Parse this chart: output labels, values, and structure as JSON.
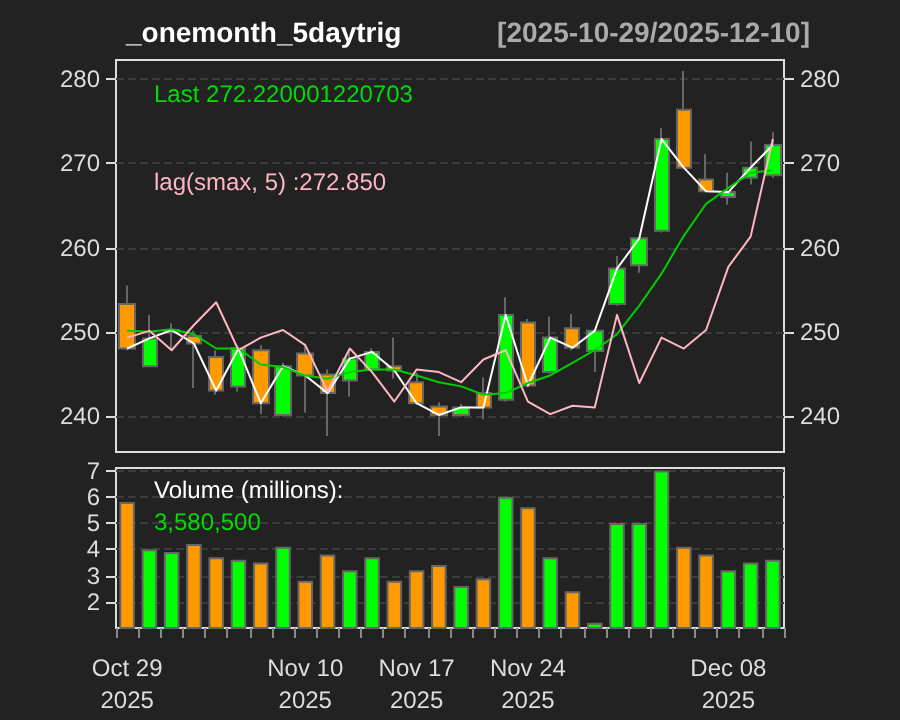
{
  "chart_data": [
    {
      "type": "candlestick",
      "title": "_onemonth_5daytrig",
      "subtitle": "[2025-10-29/2025-12-10]",
      "categories": [
        null,
        null,
        null,
        null,
        null,
        null,
        null,
        null,
        null,
        null,
        null,
        null,
        null,
        null,
        null,
        null,
        null,
        null,
        null,
        null,
        null,
        null,
        null,
        null,
        null,
        null,
        null,
        null,
        null,
        null
      ],
      "ohlc": [
        [
          253.3,
          255.5,
          247.8,
          248.0
        ],
        [
          245.9,
          252.0,
          245.8,
          249.2
        ],
        [
          249.9,
          251.0,
          247.8,
          250.2
        ],
        [
          249.5,
          250.1,
          243.3,
          248.6
        ],
        [
          247.0,
          247.8,
          242.5,
          243.0
        ],
        [
          243.5,
          248.4,
          242.9,
          248.0
        ],
        [
          247.8,
          248.4,
          240.2,
          241.5
        ],
        [
          240.1,
          246.3,
          239.9,
          245.9
        ],
        [
          247.4,
          248.5,
          240.4,
          244.8
        ],
        [
          244.9,
          245.5,
          237.6,
          242.7
        ],
        [
          244.2,
          247.8,
          242.3,
          246.8
        ],
        [
          245.5,
          248.0,
          245.2,
          247.6
        ],
        [
          245.9,
          249.3,
          244.4,
          245.4
        ],
        [
          244.0,
          245.1,
          241.3,
          241.5
        ],
        [
          241.1,
          241.6,
          237.6,
          240.1
        ],
        [
          240.1,
          241.4,
          239.9,
          241.0
        ],
        [
          242.7,
          244.6,
          239.6,
          241.0
        ],
        [
          241.9,
          254.1,
          241.7,
          252.0
        ],
        [
          251.1,
          251.5,
          243.4,
          243.6
        ],
        [
          245.2,
          251.8,
          245.0,
          249.3
        ],
        [
          250.4,
          252.1,
          247.8,
          248.1
        ],
        [
          247.7,
          250.3,
          245.2,
          250.1
        ],
        [
          253.3,
          259.0,
          253.1,
          257.5
        ],
        [
          257.9,
          261.2,
          257.0,
          261.1
        ],
        [
          262.0,
          274.2,
          261.8,
          272.9
        ],
        [
          276.4,
          281.0,
          269.4,
          269.5
        ],
        [
          268.1,
          271.1,
          266.6,
          266.7
        ],
        [
          266.0,
          268.9,
          265.1,
          266.6
        ],
        [
          268.3,
          272.6,
          267.5,
          269.5
        ],
        [
          268.6,
          273.7,
          268.3,
          272.2
        ]
      ],
      "colors": [
        "#ff9900",
        "#00ff00",
        "#00ff00",
        "#ff9900",
        "#ff9900",
        "#00ff00",
        "#ff9900",
        "#00ff00",
        "#ff9900",
        "#ff9900",
        "#00ff00",
        "#00ff00",
        "#ff9900",
        "#ff9900",
        "#ff9900",
        "#00ff00",
        "#ff9900",
        "#00ff00",
        "#ff9900",
        "#00ff00",
        "#ff9900",
        "#00ff00",
        "#00ff00",
        "#00ff00",
        "#00ff00",
        "#ff9900",
        "#ff9900",
        "#00ff00",
        "#00ff00",
        "#00ff00"
      ],
      "series": [
        {
          "type": "line",
          "color": "#ffffff",
          "values": [
            248.0,
            249.2,
            250.2,
            248.6,
            243.0,
            248.0,
            241.5,
            245.9,
            244.8,
            242.7,
            246.8,
            247.6,
            245.4,
            241.5,
            240.1,
            241.0,
            241.0,
            252.0,
            243.6,
            249.3,
            248.1,
            250.1,
            257.5,
            261.1,
            272.9,
            269.5,
            266.7,
            266.6,
            269.5,
            272.2
          ]
        },
        {
          "type": "line",
          "color": "#00cc00",
          "values": [
            250.1,
            250.0,
            250.3,
            249.7,
            248.0,
            248.0,
            246.1,
            245.8,
            244.8,
            244.4,
            245.2,
            245.5,
            245.5,
            244.8,
            244.0,
            243.5,
            242.5,
            242.7,
            243.9,
            244.8,
            246.3,
            247.8,
            249.7,
            253.1,
            256.9,
            261.4,
            265.2,
            267.1,
            268.9,
            269.2
          ]
        },
        {
          "type": "line",
          "color": "#ffb6c1",
          "values": [
            249.3,
            250.1,
            247.8,
            250.8,
            253.5,
            247.8,
            249.3,
            250.2,
            248.4,
            242.9,
            248.0,
            245.2,
            241.7,
            245.5,
            245.2,
            244.0,
            246.7,
            247.8,
            241.7,
            240.2,
            241.2,
            241.0,
            252.0,
            243.9,
            249.3,
            248.0,
            250.2,
            257.7,
            261.3,
            272.9
          ]
        }
      ],
      "ylim": [
        235.7,
        282.3
      ],
      "yticks": [
        240,
        250,
        260,
        270,
        280
      ],
      "y2lim": [
        235.7,
        282.3
      ],
      "y2ticks": [
        240,
        250,
        260,
        270,
        280
      ],
      "grid": "y",
      "marker": "none",
      "tick_labels": "y",
      "annotations": [
        "Last 272.220001220703",
        "lag(smax, 5) :272.850"
      ]
    },
    {
      "type": "bar",
      "categories": [
        "Oct 29\n2025",
        null,
        null,
        null,
        null,
        null,
        null,
        null,
        "Nov 10\n2025",
        null,
        null,
        null,
        null,
        "Nov 17\n2025",
        null,
        null,
        null,
        null,
        "Nov 24\n2025",
        null,
        null,
        null,
        null,
        null,
        null,
        null,
        null,
        "Dec 08\n2025",
        null,
        null
      ],
      "values": [
        5.8,
        4.0,
        3.9,
        4.2,
        3.7,
        3.6,
        3.5,
        4.1,
        2.8,
        3.8,
        3.2,
        3.7,
        2.8,
        3.2,
        3.4,
        2.6,
        2.9,
        6.0,
        5.6,
        3.7,
        2.4,
        1.2,
        5.0,
        5.0,
        7.0,
        4.1,
        3.8,
        3.2,
        3.5,
        3.6
      ],
      "colors": [
        "#ff9900",
        "#00ff00",
        "#00ff00",
        "#ff9900",
        "#ff9900",
        "#00ff00",
        "#ff9900",
        "#00ff00",
        "#ff9900",
        "#ff9900",
        "#00ff00",
        "#00ff00",
        "#ff9900",
        "#ff9900",
        "#ff9900",
        "#00ff00",
        "#ff9900",
        "#00ff00",
        "#ff9900",
        "#00ff00",
        "#ff9900",
        "#00ff00",
        "#00ff00",
        "#00ff00",
        "#00ff00",
        "#ff9900",
        "#ff9900",
        "#00ff00",
        "#00ff00",
        "#00ff00"
      ],
      "ylim": [
        1.0,
        7.1
      ],
      "yticks": [
        2,
        3,
        4,
        5,
        6,
        7
      ],
      "grid": "y",
      "annotations": [
        "Volume (millions):",
        "3,580,500"
      ]
    }
  ]
}
